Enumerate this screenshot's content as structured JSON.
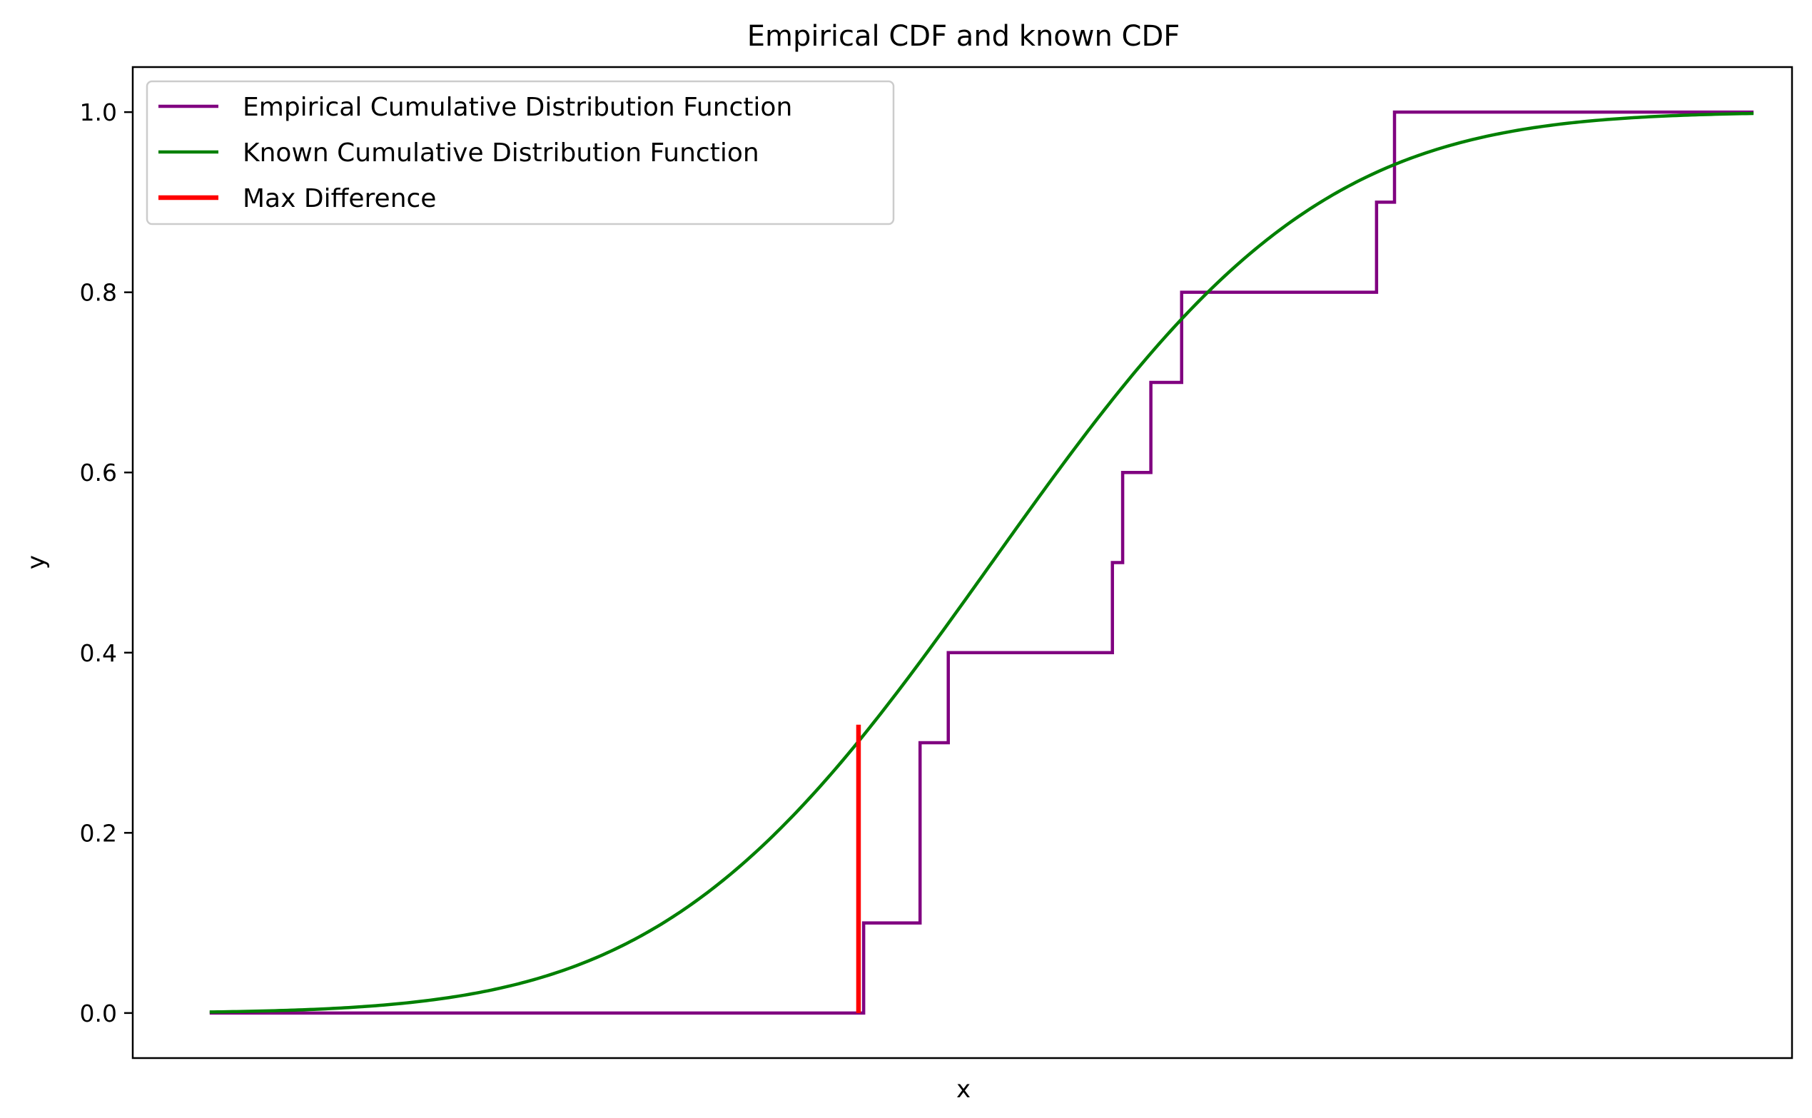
{
  "chart_data": {
    "type": "line",
    "title": "Empirical CDF and known CDF",
    "xlabel": "x",
    "ylabel": "y",
    "xlim": [
      -3.35,
      3.12
    ],
    "ylim": [
      -0.05,
      1.05
    ],
    "x_ticks_visible": false,
    "y_ticks": [
      0.0,
      0.2,
      0.4,
      0.6,
      0.8,
      1.0
    ],
    "y_tick_labels": [
      "0.0",
      "0.2",
      "0.4",
      "0.6",
      "0.8",
      "1.0"
    ],
    "grid": false,
    "legend": {
      "position": "top-left",
      "entries": [
        {
          "label": "Empirical Cumulative Distribution Function",
          "color": "#800080",
          "series": "ecdf"
        },
        {
          "label": "Known Cumulative Distribution Function",
          "color": "#008000",
          "series": "known"
        },
        {
          "label": "Max Difference",
          "color": "#ff0000",
          "series": "maxdiff"
        }
      ]
    },
    "series": [
      {
        "id": "ecdf",
        "name": "Empirical Cumulative Distribution Function",
        "kind": "step",
        "color": "#800080",
        "x_start": -3.05,
        "x_end": 2.97,
        "jumps": [
          {
            "x": -0.5,
            "y": 0.1
          },
          {
            "x": -0.28,
            "y": 0.3
          },
          {
            "x": -0.17,
            "y": 0.4
          },
          {
            "x": 0.47,
            "y": 0.5
          },
          {
            "x": 0.51,
            "y": 0.6
          },
          {
            "x": 0.62,
            "y": 0.7
          },
          {
            "x": 0.74,
            "y": 0.8
          },
          {
            "x": 1.5,
            "y": 0.9
          },
          {
            "x": 1.57,
            "y": 1.0
          }
        ]
      },
      {
        "id": "known",
        "name": "Known Cumulative Distribution Function",
        "kind": "normal_cdf",
        "color": "#008000",
        "mean": 0.0,
        "std": 1.0,
        "x_start": -3.05,
        "x_end": 2.97
      },
      {
        "id": "maxdiff",
        "name": "Max Difference",
        "kind": "vline",
        "color": "#ff0000",
        "x": -0.52,
        "y_from": 0.0,
        "y_to": 0.32
      }
    ]
  }
}
